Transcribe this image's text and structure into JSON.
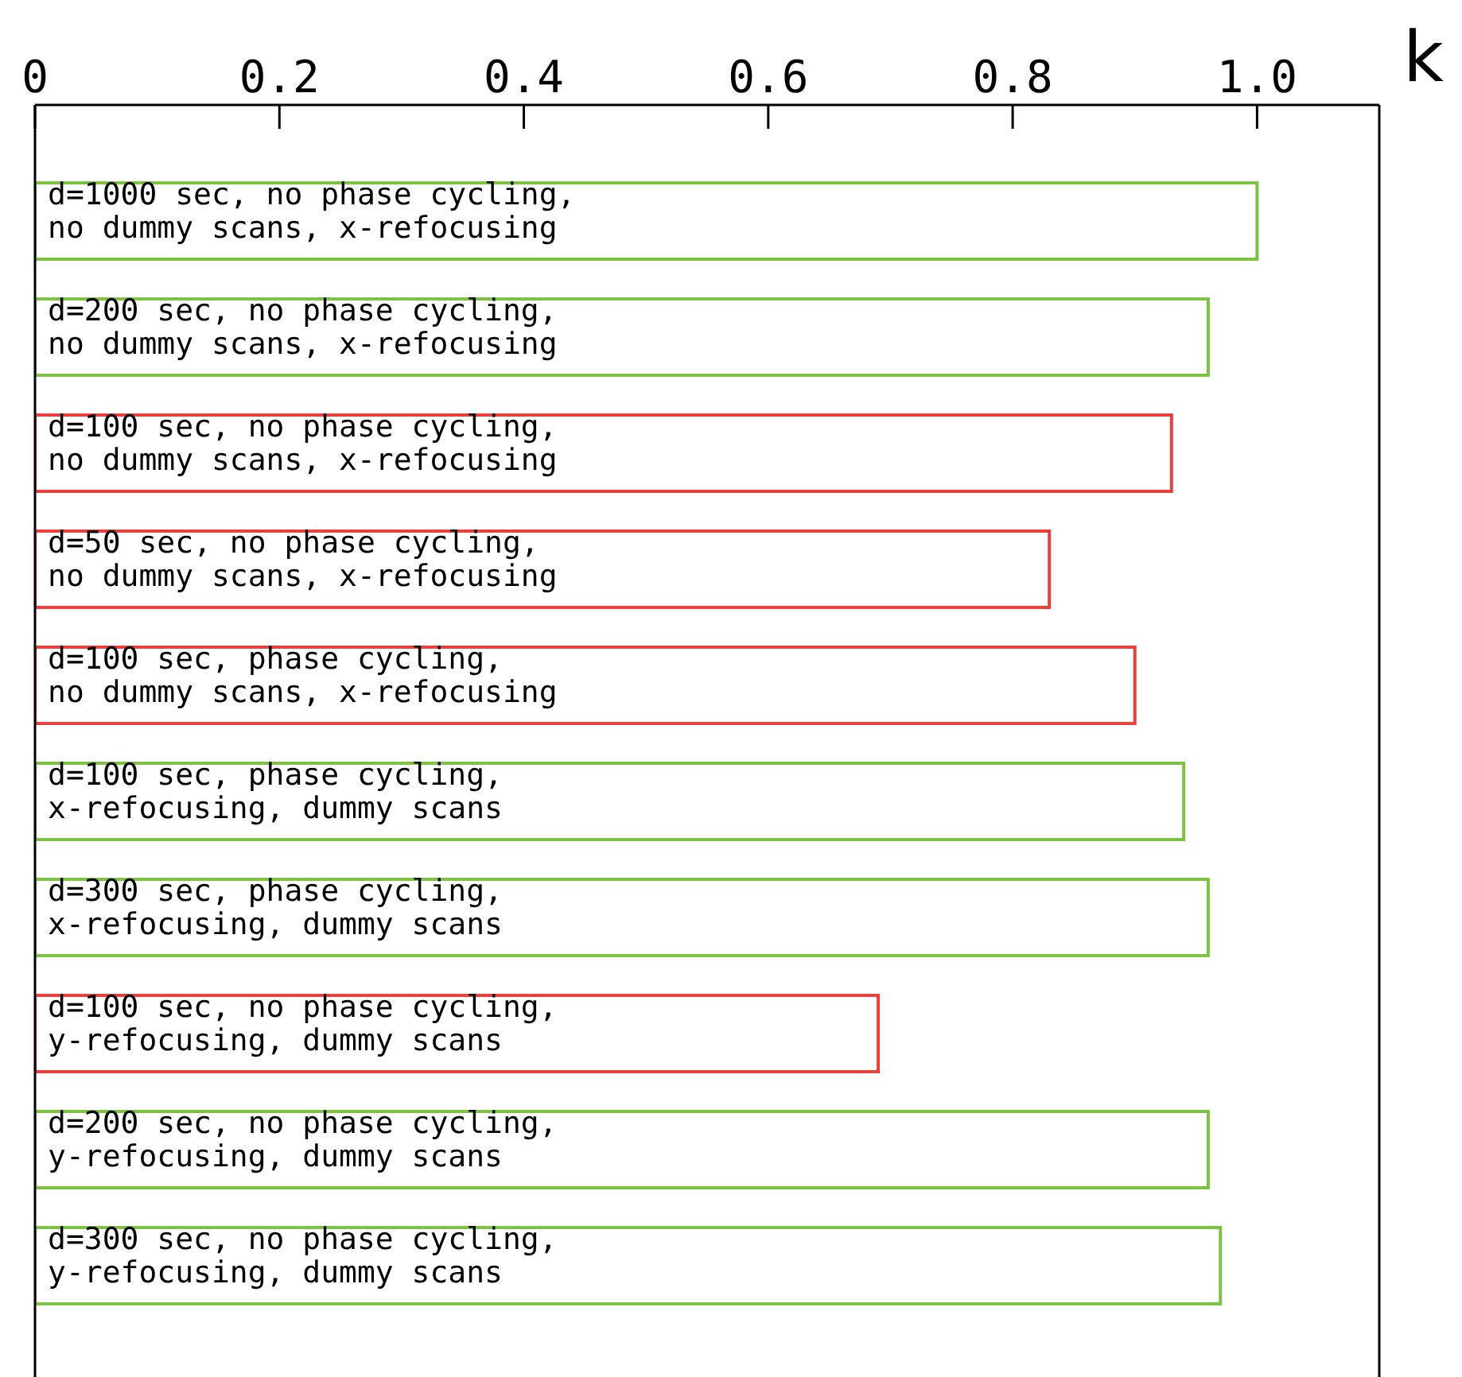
{
  "chart_data": {
    "type": "bar",
    "orientation": "horizontal",
    "categories": [
      "d=1000 sec, no phase cycling, no dummy scans, x-refocusing",
      "d=200 sec, no phase cycling, no dummy scans, x-refocusing",
      "d=100 sec, no phase cycling, no dummy scans, x-refocusing",
      "d=50 sec, no phase cycling, no dummy scans, x-refocusing",
      "d=100 sec, phase cycling, no dummy scans, x-refocusing",
      "d=100 sec, phase cycling, x-refocusing, dummy scans",
      "d=300 sec, phase cycling, x-refocusing, dummy scans",
      "d=100 sec, no phase cycling, y-refocusing, dummy scans",
      "d=200 sec, no phase cycling, y-refocusing, dummy scans",
      "d=300 sec, no phase cycling, y-refocusing, dummy scans"
    ],
    "values": [
      1.0,
      0.96,
      0.93,
      0.83,
      0.9,
      0.94,
      0.96,
      0.69,
      0.96,
      0.97
    ],
    "colors": [
      "#7dc242",
      "#7dc242",
      "#e8413c",
      "#e8413c",
      "#e8413c",
      "#7dc242",
      "#7dc242",
      "#e8413c",
      "#7dc242",
      "#7dc242"
    ],
    "xlim": [
      0,
      1.1
    ],
    "xticks": [
      0,
      {
        "value": 0.2,
        "label": "0.2"
      },
      {
        "value": 0.4,
        "label": "0.4"
      },
      {
        "value": 0.6,
        "label": "0.6"
      },
      {
        "value": 0.8,
        "label": "0.8"
      },
      {
        "value": 1.0,
        "label": "1.0"
      }
    ],
    "grid": false,
    "legend": false,
    "annotations": [
      "k"
    ]
  }
}
